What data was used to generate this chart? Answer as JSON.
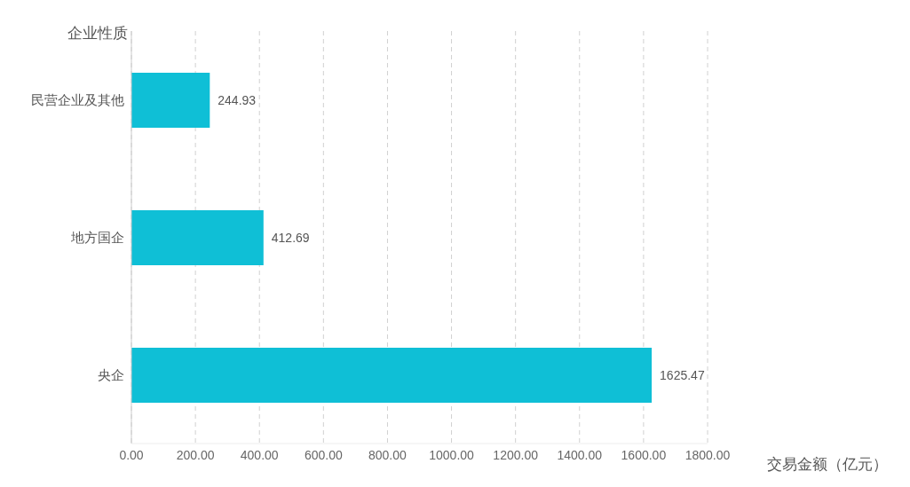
{
  "chart_data": {
    "type": "bar",
    "orientation": "horizontal",
    "xlabel": "交易金额（亿元）",
    "ylabel": "企业性质",
    "categories": [
      "民营企业及其他",
      "地方国企",
      "央企"
    ],
    "values": [
      244.93,
      412.69,
      1625.47
    ],
    "color": "#0fbfd6",
    "xlim": [
      0,
      1800
    ],
    "xticks": [
      {
        "value": 0,
        "label": "0.00"
      },
      {
        "value": 200,
        "label": "200.00"
      },
      {
        "value": 400,
        "label": "400.00"
      },
      {
        "value": 600,
        "label": "600.00"
      },
      {
        "value": 800,
        "label": "800.00"
      },
      {
        "value": 1000,
        "label": "1000.00"
      },
      {
        "value": 1200,
        "label": "1200.00"
      },
      {
        "value": 1400,
        "label": "1400.00"
      },
      {
        "value": 1600,
        "label": "1600.00"
      },
      {
        "value": 1800,
        "label": "1800.00"
      }
    ],
    "grid": "x",
    "data_labels": true
  }
}
